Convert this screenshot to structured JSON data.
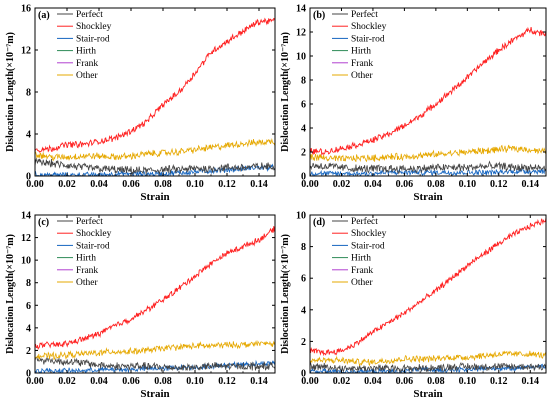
{
  "figure": {
    "common": {
      "xlabel": "Strain",
      "ylabel": "Dislocation Length(×10⁻⁷m)",
      "x_ticks": [
        "0.00",
        "0.02",
        "0.04",
        "0.06",
        "0.08",
        "0.10",
        "0.12",
        "0.14"
      ],
      "legend": [
        {
          "name": "Perfect",
          "color": "#444444"
        },
        {
          "name": "Shockley",
          "color": "#ff2222"
        },
        {
          "name": "Stair-rod",
          "color": "#1565c0"
        },
        {
          "name": "Hirth",
          "color": "#2e8b57"
        },
        {
          "name": "Frank",
          "color": "#b040d0"
        },
        {
          "name": "Other",
          "color": "#e6a800"
        }
      ],
      "legend_position": "top-left"
    }
  },
  "chart_data": [
    {
      "panel": "(a)",
      "type": "line",
      "xlim": [
        0,
        0.15
      ],
      "ylim": [
        0,
        16
      ],
      "y_ticks": [
        "0",
        "4",
        "8",
        "12",
        "16"
      ],
      "x": [
        0,
        0.01,
        0.02,
        0.03,
        0.04,
        0.05,
        0.06,
        0.07,
        0.08,
        0.09,
        0.1,
        0.11,
        0.12,
        0.13,
        0.14,
        0.15
      ],
      "series": [
        {
          "name": "Perfect",
          "values": [
            1.3,
            1.2,
            1.0,
            0.8,
            0.7,
            0.6,
            0.5,
            0.5,
            0.6,
            0.6,
            0.7,
            0.7,
            0.8,
            0.8,
            0.9,
            0.9
          ]
        },
        {
          "name": "Shockley",
          "values": [
            2.5,
            2.6,
            3.0,
            3.0,
            3.3,
            3.6,
            4.3,
            5.2,
            6.8,
            8.0,
            9.8,
            11.8,
            12.8,
            13.8,
            14.7,
            14.8
          ]
        },
        {
          "name": "Stair-rod",
          "values": [
            0.1,
            0.1,
            0.1,
            0.1,
            0.1,
            0.2,
            0.2,
            0.2,
            0.2,
            0.3,
            0.4,
            0.5,
            0.6,
            0.7,
            0.8,
            0.8
          ]
        },
        {
          "name": "Hirth",
          "values": [
            0,
            0,
            0,
            0,
            0,
            0,
            0,
            0,
            0,
            0,
            0,
            0,
            0,
            0,
            0,
            0
          ]
        },
        {
          "name": "Frank",
          "values": [
            0,
            0,
            0,
            0,
            0,
            0,
            0,
            0,
            0,
            0,
            0,
            0,
            0,
            0,
            0,
            0
          ]
        },
        {
          "name": "Other",
          "values": [
            2.1,
            1.8,
            1.8,
            1.9,
            1.9,
            1.8,
            1.9,
            2.1,
            2.2,
            2.3,
            2.5,
            2.7,
            2.9,
            3.1,
            3.2,
            3.3
          ]
        }
      ]
    },
    {
      "panel": "(b)",
      "type": "line",
      "xlim": [
        0,
        0.15
      ],
      "ylim": [
        0,
        14
      ],
      "y_ticks": [
        "0",
        "2",
        "4",
        "6",
        "8",
        "10",
        "12",
        "14"
      ],
      "x": [
        0,
        0.01,
        0.02,
        0.03,
        0.04,
        0.05,
        0.06,
        0.07,
        0.08,
        0.09,
        0.1,
        0.11,
        0.12,
        0.13,
        0.14,
        0.15
      ],
      "series": [
        {
          "name": "Perfect",
          "values": [
            0.9,
            0.8,
            0.7,
            0.6,
            0.6,
            0.6,
            0.6,
            0.6,
            0.7,
            0.7,
            0.7,
            0.8,
            0.8,
            0.7,
            0.7,
            0.6
          ]
        },
        {
          "name": "Shockley",
          "values": [
            2.1,
            2.0,
            2.3,
            2.6,
            3.0,
            3.5,
            4.2,
            5.0,
            6.0,
            7.1,
            8.2,
            9.4,
            10.5,
            11.4,
            12.2,
            11.8
          ]
        },
        {
          "name": "Stair-rod",
          "values": [
            0.2,
            0.2,
            0.2,
            0.2,
            0.2,
            0.3,
            0.3,
            0.3,
            0.3,
            0.3,
            0.3,
            0.3,
            0.3,
            0.4,
            0.4,
            0.4
          ]
        },
        {
          "name": "Hirth",
          "values": [
            0,
            0,
            0,
            0,
            0,
            0,
            0,
            0,
            0,
            0,
            0,
            0,
            0,
            0,
            0,
            0
          ]
        },
        {
          "name": "Frank",
          "values": [
            0,
            0,
            0,
            0,
            0,
            0,
            0,
            0,
            0,
            0,
            0,
            0,
            0,
            0,
            0,
            0
          ]
        },
        {
          "name": "Other",
          "values": [
            1.6,
            1.5,
            1.4,
            1.5,
            1.5,
            1.6,
            1.6,
            1.7,
            1.8,
            1.9,
            2.0,
            2.1,
            2.2,
            2.3,
            2.2,
            2.0
          ]
        }
      ]
    },
    {
      "panel": "(c)",
      "type": "line",
      "xlim": [
        0,
        0.15
      ],
      "ylim": [
        0,
        14
      ],
      "y_ticks": [
        "0",
        "2",
        "4",
        "6",
        "8",
        "10",
        "12",
        "14"
      ],
      "x": [
        0,
        0.01,
        0.02,
        0.03,
        0.04,
        0.05,
        0.06,
        0.07,
        0.08,
        0.09,
        0.1,
        0.11,
        0.12,
        0.13,
        0.14,
        0.15
      ],
      "series": [
        {
          "name": "Perfect",
          "values": [
            1.2,
            1.1,
            1.0,
            0.9,
            0.7,
            0.6,
            0.6,
            0.6,
            0.5,
            0.5,
            0.5,
            0.6,
            0.6,
            0.6,
            0.6,
            0.6
          ]
        },
        {
          "name": "Shockley",
          "values": [
            2.4,
            2.5,
            2.6,
            3.0,
            3.5,
            4.2,
            4.8,
            5.6,
            6.5,
            7.5,
            8.6,
            9.7,
            10.6,
            11.2,
            11.8,
            12.8
          ]
        },
        {
          "name": "Stair-rod",
          "values": [
            0.2,
            0.2,
            0.2,
            0.2,
            0.3,
            0.3,
            0.3,
            0.4,
            0.4,
            0.5,
            0.5,
            0.6,
            0.7,
            0.8,
            0.8,
            0.9
          ]
        },
        {
          "name": "Hirth",
          "values": [
            0,
            0,
            0,
            0,
            0,
            0,
            0,
            0,
            0,
            0,
            0,
            0,
            0,
            0,
            0,
            0
          ]
        },
        {
          "name": "Frank",
          "values": [
            0,
            0,
            0,
            0,
            0,
            0,
            0,
            0,
            0,
            0,
            0,
            0,
            0,
            0,
            0,
            0
          ]
        },
        {
          "name": "Other",
          "values": [
            1.5,
            1.5,
            1.6,
            1.7,
            1.8,
            1.9,
            1.9,
            2.0,
            2.2,
            2.3,
            2.4,
            2.4,
            2.5,
            2.5,
            2.6,
            2.6
          ]
        }
      ]
    },
    {
      "panel": "(d)",
      "type": "line",
      "xlim": [
        0,
        0.15
      ],
      "ylim": [
        0,
        10
      ],
      "y_ticks": [
        "0",
        "2",
        "4",
        "6",
        "8",
        "10"
      ],
      "x": [
        0,
        0.01,
        0.02,
        0.03,
        0.04,
        0.05,
        0.06,
        0.07,
        0.08,
        0.09,
        0.1,
        0.11,
        0.12,
        0.13,
        0.14,
        0.15
      ],
      "series": [
        {
          "name": "Perfect",
          "values": [
            0.4,
            0.4,
            0.3,
            0.3,
            0.3,
            0.3,
            0.3,
            0.3,
            0.3,
            0.4,
            0.4,
            0.4,
            0.4,
            0.4,
            0.4,
            0.4
          ]
        },
        {
          "name": "Shockley",
          "values": [
            1.4,
            1.3,
            1.4,
            1.9,
            2.6,
            3.2,
            3.8,
            4.5,
            5.2,
            6.0,
            6.8,
            7.5,
            8.2,
            8.8,
            9.3,
            9.7
          ]
        },
        {
          "name": "Stair-rod",
          "values": [
            0.1,
            0.1,
            0.1,
            0.1,
            0.1,
            0.1,
            0.1,
            0.2,
            0.2,
            0.2,
            0.2,
            0.3,
            0.3,
            0.3,
            0.4,
            0.4
          ]
        },
        {
          "name": "Hirth",
          "values": [
            0,
            0,
            0,
            0,
            0,
            0,
            0,
            0,
            0,
            0,
            0,
            0,
            0,
            0,
            0,
            0
          ]
        },
        {
          "name": "Frank",
          "values": [
            0,
            0,
            0,
            0,
            0,
            0,
            0,
            0,
            0,
            0,
            0,
            0,
            0,
            0,
            0,
            0
          ]
        },
        {
          "name": "Other",
          "values": [
            0.8,
            0.8,
            0.8,
            0.7,
            0.7,
            0.8,
            0.9,
            0.9,
            0.9,
            1.0,
            1.0,
            1.1,
            1.2,
            1.2,
            1.2,
            1.1
          ]
        }
      ]
    }
  ]
}
